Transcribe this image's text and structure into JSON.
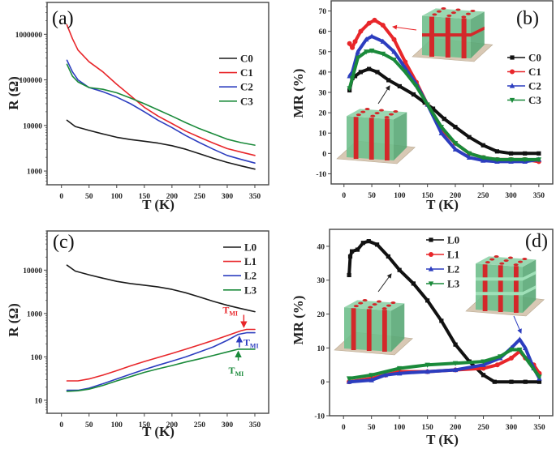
{
  "chart_data": [
    {
      "panel": "(a)",
      "type": "line",
      "xlabel": "T (K)",
      "ylabel": "R (Ω)",
      "yscale": "log",
      "xlim": [
        -26,
        375
      ],
      "ylim": [
        500,
        5000000
      ],
      "xticks": [
        0,
        50,
        100,
        150,
        200,
        250,
        300,
        350
      ],
      "yticks": [
        1000,
        10000,
        100000,
        1000000
      ],
      "ytick_labels": [
        "1000",
        "10000",
        "100000",
        "1000000"
      ],
      "legend_position": "right",
      "marker": false,
      "series": [
        {
          "name": "C0",
          "color": "#1a1a1a",
          "x": [
            10,
            25,
            50,
            75,
            100,
            125,
            150,
            175,
            200,
            225,
            250,
            275,
            300,
            325,
            350
          ],
          "y": [
            13000,
            9500,
            7800,
            6500,
            5500,
            4900,
            4500,
            4100,
            3600,
            3000,
            2400,
            1900,
            1550,
            1300,
            1100
          ]
        },
        {
          "name": "C1",
          "color": "#e8262a",
          "x": [
            10,
            20,
            30,
            50,
            75,
            100,
            125,
            150,
            175,
            200,
            225,
            250,
            275,
            300,
            325,
            350
          ],
          "y": [
            1600000,
            800000,
            450000,
            250000,
            150000,
            80000,
            45000,
            25000,
            16000,
            11000,
            7500,
            5500,
            4100,
            3100,
            2600,
            2200
          ]
        },
        {
          "name": "C2",
          "color": "#2c3dbf",
          "x": [
            10,
            20,
            30,
            50,
            75,
            100,
            125,
            150,
            175,
            200,
            225,
            250,
            275,
            300,
            325,
            350
          ],
          "y": [
            270000,
            150000,
            100000,
            68000,
            55000,
            42000,
            30000,
            20000,
            13000,
            9000,
            6000,
            4200,
            3000,
            2200,
            1800,
            1500
          ]
        },
        {
          "name": "C3",
          "color": "#1a8a3a",
          "x": [
            10,
            20,
            30,
            50,
            75,
            100,
            125,
            150,
            175,
            200,
            225,
            250,
            275,
            300,
            325,
            350
          ],
          "y": [
            220000,
            120000,
            90000,
            68000,
            62000,
            52000,
            40000,
            30000,
            22000,
            16000,
            11500,
            8500,
            6500,
            5000,
            4200,
            3700
          ]
        }
      ]
    },
    {
      "panel": "(b)",
      "type": "line",
      "xlabel": "T (K)",
      "ylabel": "MR (%)",
      "yscale": "linear",
      "xlim": [
        -23,
        375
      ],
      "ylim": [
        -15,
        75
      ],
      "xticks": [
        0,
        50,
        100,
        150,
        200,
        250,
        300,
        350
      ],
      "yticks": [
        -10,
        0,
        10,
        20,
        30,
        40,
        50,
        60,
        70
      ],
      "ytick_labels": [
        "-10",
        "0",
        "10",
        "20",
        "30",
        "40",
        "50",
        "60",
        "70"
      ],
      "legend_position": "right",
      "marker": true,
      "series": [
        {
          "name": "C0",
          "color": "#111111",
          "marker": "square",
          "x": [
            10,
            15,
            20,
            30,
            45,
            60,
            80,
            100,
            125,
            145,
            160,
            180,
            200,
            225,
            250,
            275,
            300,
            325,
            350
          ],
          "y": [
            31,
            37,
            38,
            40,
            41.5,
            40,
            36,
            33,
            29,
            25,
            22,
            17,
            13,
            8,
            4,
            1,
            0,
            0,
            0
          ]
        },
        {
          "name": "C1",
          "color": "#e8262a",
          "marker": "circle",
          "x": [
            10,
            15,
            20,
            30,
            45,
            55,
            70,
            90,
            110,
            130,
            150,
            175,
            200,
            225,
            250,
            275,
            300,
            325,
            350
          ],
          "y": [
            54,
            52,
            55,
            60,
            64,
            65.5,
            63,
            56,
            45,
            35,
            24,
            12,
            5,
            0,
            -2,
            -3,
            -3,
            -3,
            -4
          ]
        },
        {
          "name": "C2",
          "color": "#2c3dbf",
          "marker": "triangle-up",
          "x": [
            10,
            15,
            25,
            40,
            50,
            70,
            90,
            110,
            130,
            150,
            175,
            200,
            225,
            250,
            275,
            300,
            325,
            350
          ],
          "y": [
            38,
            40,
            50,
            56,
            57.5,
            55,
            50,
            42,
            34,
            24,
            10,
            2,
            -2,
            -3.5,
            -4,
            -4,
            -4,
            -3
          ]
        },
        {
          "name": "C3",
          "color": "#1a8a3a",
          "marker": "triangle-down",
          "x": [
            10,
            15,
            25,
            40,
            50,
            70,
            90,
            110,
            130,
            150,
            175,
            200,
            225,
            250,
            275,
            300,
            325,
            350
          ],
          "y": [
            32,
            37,
            47,
            50,
            50.5,
            49,
            46,
            40,
            33,
            24,
            13,
            5,
            0,
            -2,
            -3,
            -3,
            -3,
            -3
          ]
        }
      ]
    },
    {
      "panel": "(c)",
      "type": "line",
      "xlabel": "T (K)",
      "ylabel": "R (Ω)",
      "yscale": "log",
      "xlim": [
        -26,
        375
      ],
      "ylim": [
        5,
        80000
      ],
      "xticks": [
        0,
        50,
        100,
        150,
        200,
        250,
        300,
        350
      ],
      "yticks": [
        10,
        100,
        1000,
        10000
      ],
      "ytick_labels": [
        "10",
        "100",
        "1000",
        "10000"
      ],
      "legend_position": "top-right",
      "marker": false,
      "annotations": [
        {
          "text": "T",
          "sub": "MI",
          "color": "#e8262a",
          "x": 330,
          "y": 430,
          "arrow": "down"
        },
        {
          "text": "T",
          "sub": "MI",
          "color": "#2c3dbf",
          "x": 322,
          "y": 330,
          "arrow": "up"
        },
        {
          "text": "T",
          "sub": "MI",
          "color": "#1a8a3a",
          "x": 320,
          "y": 150,
          "arrow": "up"
        }
      ],
      "series": [
        {
          "name": "L0",
          "color": "#1a1a1a",
          "x": [
            10,
            25,
            50,
            75,
            100,
            125,
            150,
            175,
            200,
            225,
            250,
            275,
            300,
            325,
            350
          ],
          "y": [
            13000,
            9500,
            7800,
            6500,
            5500,
            4900,
            4500,
            4100,
            3600,
            3000,
            2400,
            1900,
            1550,
            1300,
            1100
          ]
        },
        {
          "name": "L1",
          "color": "#e8262a",
          "x": [
            10,
            30,
            50,
            75,
            100,
            125,
            150,
            175,
            200,
            225,
            250,
            275,
            300,
            325,
            335,
            350
          ],
          "y": [
            28,
            28,
            31,
            38,
            48,
            62,
            78,
            97,
            120,
            150,
            190,
            240,
            310,
            400,
            430,
            430
          ]
        },
        {
          "name": "L2",
          "color": "#2c3dbf",
          "x": [
            10,
            30,
            50,
            75,
            100,
            125,
            150,
            175,
            200,
            225,
            250,
            275,
            300,
            320,
            335,
            350
          ],
          "y": [
            17,
            17,
            19,
            24,
            31,
            40,
            51,
            64,
            80,
            100,
            130,
            170,
            240,
            330,
            360,
            360
          ]
        },
        {
          "name": "L3",
          "color": "#1a8a3a",
          "x": [
            10,
            30,
            50,
            75,
            100,
            125,
            150,
            175,
            200,
            225,
            250,
            275,
            300,
            320,
            350
          ],
          "y": [
            16,
            16.5,
            18,
            22,
            28,
            35,
            44,
            53,
            63,
            76,
            90,
            108,
            130,
            150,
            150
          ]
        }
      ]
    },
    {
      "panel": "(d)",
      "type": "line",
      "xlabel": "T (K)",
      "ylabel": "MR (%)",
      "yscale": "linear",
      "xlim": [
        -25,
        374
      ],
      "ylim": [
        -10,
        45
      ],
      "xticks": [
        0,
        50,
        100,
        150,
        200,
        250,
        300,
        350
      ],
      "yticks": [
        -10,
        0,
        10,
        20,
        30,
        40
      ],
      "ytick_labels": [
        "-10",
        "0",
        "10",
        "20",
        "30",
        "40"
      ],
      "legend_position": "top",
      "marker": true,
      "series": [
        {
          "name": "L0",
          "color": "#111111",
          "marker": "square",
          "x": [
            10,
            12,
            15,
            25,
            35,
            45,
            60,
            80,
            100,
            125,
            150,
            175,
            200,
            225,
            250,
            270,
            300,
            325,
            350
          ],
          "y": [
            31.5,
            37,
            38.5,
            39,
            41,
            41.5,
            40.5,
            37,
            33,
            29,
            24,
            18,
            11,
            6,
            2,
            0,
            0,
            0,
            0
          ]
        },
        {
          "name": "L1",
          "color": "#e8262a",
          "marker": "circle",
          "x": [
            10,
            50,
            75,
            100,
            150,
            200,
            250,
            275,
            300,
            315,
            325,
            340,
            350
          ],
          "y": [
            0,
            1,
            2,
            3,
            3,
            3.5,
            4,
            5,
            7,
            9,
            7,
            5,
            2.5
          ]
        },
        {
          "name": "L2",
          "color": "#2c3dbf",
          "marker": "triangle-up",
          "x": [
            10,
            50,
            75,
            100,
            150,
            200,
            250,
            280,
            300,
            315,
            325,
            340,
            350
          ],
          "y": [
            0,
            0.5,
            2,
            2.5,
            3,
            3.5,
            5,
            7,
            10,
            12.5,
            10,
            4,
            1
          ]
        },
        {
          "name": "L3",
          "color": "#1a8a3a",
          "marker": "triangle-down",
          "x": [
            10,
            50,
            100,
            150,
            200,
            250,
            280,
            300,
            315,
            330,
            350
          ],
          "y": [
            1,
            2,
            4,
            5,
            5.5,
            6,
            7.5,
            9.5,
            9.5,
            6,
            1.5
          ]
        }
      ]
    }
  ]
}
